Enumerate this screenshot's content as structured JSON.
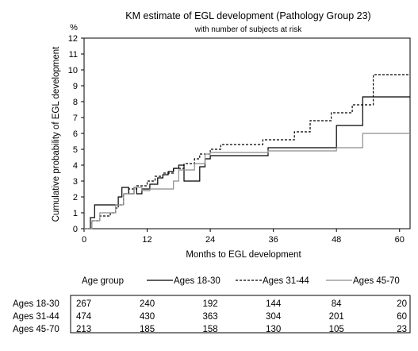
{
  "chart_data": {
    "type": "line",
    "title": "KM estimate of EGL development (Pathology Group 23)",
    "subtitle": "with number of subjects at risk",
    "xlabel": "Months to EGL development",
    "ylabel": "Cumulative probability of EGL development",
    "yunit": "%",
    "xlim": [
      0,
      62
    ],
    "ylim": [
      0,
      12
    ],
    "xticks": [
      0,
      12,
      24,
      36,
      48,
      60
    ],
    "yticks": [
      0,
      1,
      2,
      3,
      4,
      5,
      6,
      7,
      8,
      9,
      10,
      11,
      12
    ],
    "legend_title": "Age group",
    "series": [
      {
        "name": "Ages 18-30",
        "style": "solid",
        "color": "#000000",
        "points": [
          [
            0,
            0
          ],
          [
            1.2,
            0
          ],
          [
            1.2,
            0.7
          ],
          [
            2.0,
            0.7
          ],
          [
            2.0,
            1.5
          ],
          [
            6.5,
            1.5
          ],
          [
            6.5,
            2.0
          ],
          [
            7.2,
            2.0
          ],
          [
            7.2,
            2.6
          ],
          [
            8.5,
            2.6
          ],
          [
            8.5,
            2.2
          ],
          [
            9.5,
            2.2
          ],
          [
            9.5,
            2.6
          ],
          [
            10,
            2.6
          ],
          [
            10,
            2.2
          ],
          [
            11,
            2.2
          ],
          [
            11,
            2.5
          ],
          [
            12.5,
            2.5
          ],
          [
            12.5,
            2.8
          ],
          [
            14,
            2.8
          ],
          [
            14,
            3.2
          ],
          [
            15,
            3.2
          ],
          [
            15,
            3.4
          ],
          [
            16,
            3.4
          ],
          [
            16,
            3.6
          ],
          [
            17,
            3.6
          ],
          [
            17,
            3.8
          ],
          [
            18,
            3.8
          ],
          [
            18,
            4.0
          ],
          [
            19,
            4.0
          ],
          [
            19,
            3.0
          ],
          [
            22,
            3.0
          ],
          [
            22,
            3.9
          ],
          [
            23,
            3.9
          ],
          [
            23,
            4.4
          ],
          [
            24,
            4.4
          ],
          [
            24,
            4.6
          ],
          [
            35,
            4.6
          ],
          [
            35,
            5.1
          ],
          [
            48,
            5.1
          ],
          [
            48,
            6.5
          ],
          [
            53,
            6.5
          ],
          [
            53,
            8.3
          ],
          [
            62,
            8.3
          ]
        ]
      },
      {
        "name": "Ages 31-44",
        "style": "dashed",
        "color": "#000000",
        "points": [
          [
            0,
            0
          ],
          [
            1.5,
            0
          ],
          [
            1.5,
            0.5
          ],
          [
            3,
            0.5
          ],
          [
            3,
            0.8
          ],
          [
            5,
            0.8
          ],
          [
            5,
            1.0
          ],
          [
            6,
            1.0
          ],
          [
            6,
            1.3
          ],
          [
            6.5,
            1.3
          ],
          [
            6.5,
            1.5
          ],
          [
            7.5,
            1.5
          ],
          [
            7.5,
            2.2
          ],
          [
            8.5,
            2.2
          ],
          [
            8.5,
            2.5
          ],
          [
            10,
            2.5
          ],
          [
            10,
            2.7
          ],
          [
            12,
            2.7
          ],
          [
            12,
            3.0
          ],
          [
            13.5,
            3.0
          ],
          [
            13.5,
            3.3
          ],
          [
            15,
            3.3
          ],
          [
            15,
            3.5
          ],
          [
            17,
            3.5
          ],
          [
            17,
            3.8
          ],
          [
            19,
            3.8
          ],
          [
            19,
            4.1
          ],
          [
            21,
            4.1
          ],
          [
            21,
            4.4
          ],
          [
            22,
            4.4
          ],
          [
            22,
            4.7
          ],
          [
            24,
            4.7
          ],
          [
            24,
            5.0
          ],
          [
            26,
            5.0
          ],
          [
            26,
            5.3
          ],
          [
            34,
            5.3
          ],
          [
            34,
            5.6
          ],
          [
            40,
            5.6
          ],
          [
            40,
            6.1
          ],
          [
            43,
            6.1
          ],
          [
            43,
            6.8
          ],
          [
            47,
            6.8
          ],
          [
            47,
            7.3
          ],
          [
            51,
            7.3
          ],
          [
            51,
            7.8
          ],
          [
            55,
            7.8
          ],
          [
            55,
            9.7
          ],
          [
            62,
            9.7
          ]
        ]
      },
      {
        "name": "Ages 45-70",
        "style": "solid",
        "color": "#8c8c8c",
        "points": [
          [
            0,
            0
          ],
          [
            1.5,
            0
          ],
          [
            1.5,
            0.5
          ],
          [
            3,
            0.5
          ],
          [
            3,
            1.0
          ],
          [
            6,
            1.0
          ],
          [
            6,
            1.5
          ],
          [
            7.5,
            1.5
          ],
          [
            7.5,
            2.2
          ],
          [
            9.5,
            2.2
          ],
          [
            9.5,
            2.6
          ],
          [
            11,
            2.6
          ],
          [
            11,
            2.4
          ],
          [
            12.5,
            2.4
          ],
          [
            12.5,
            2.5
          ],
          [
            17,
            2.5
          ],
          [
            17,
            3.0
          ],
          [
            18,
            3.0
          ],
          [
            18,
            3.7
          ],
          [
            21,
            3.7
          ],
          [
            21,
            4.1
          ],
          [
            23,
            4.1
          ],
          [
            23,
            4.7
          ],
          [
            24,
            4.7
          ],
          [
            24,
            4.8
          ],
          [
            35,
            4.8
          ],
          [
            35,
            4.9
          ],
          [
            48,
            4.9
          ],
          [
            48,
            5.1
          ],
          [
            53,
            5.1
          ],
          [
            53,
            6.0
          ],
          [
            62,
            6.0
          ]
        ]
      }
    ],
    "at_risk": {
      "times": [
        0,
        12,
        24,
        36,
        48,
        60
      ],
      "rows": [
        {
          "label": "Ages 18-30",
          "values": [
            "267",
            "240",
            "192",
            "144",
            "84",
            "20"
          ]
        },
        {
          "label": "Ages 31-44",
          "values": [
            "474",
            "430",
            "363",
            "304",
            "201",
            "60"
          ]
        },
        {
          "label": "Ages 45-70",
          "values": [
            "213",
            "185",
            "158",
            "130",
            "105",
            "23"
          ]
        }
      ]
    }
  }
}
